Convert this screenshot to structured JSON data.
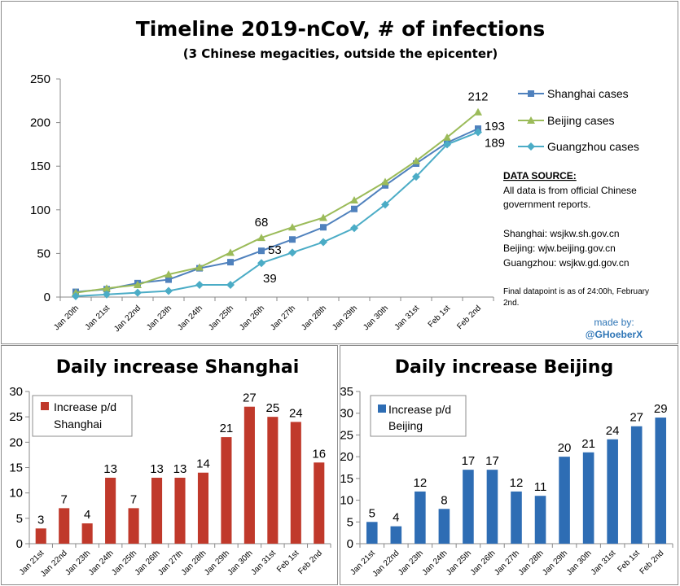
{
  "chart_data": [
    {
      "type": "line",
      "title": "Timeline 2019-nCoV, # of infections",
      "subtitle": "(3 Chinese megacities, outside the epicenter)",
      "categories": [
        "Jan 20th",
        "Jan 21st",
        "Jan 22nd",
        "Jan 23th",
        "Jan 24th",
        "Jan 25th",
        "Jan 26th",
        "Jan 27th",
        "Jan 28th",
        "Jan 29th",
        "Jan 30th",
        "Jan 31st",
        "Feb 1st",
        "Feb 2nd"
      ],
      "yticks": [
        "0",
        "50",
        "100",
        "150",
        "200",
        "250"
      ],
      "ylim": [
        0,
        250
      ],
      "series": [
        {
          "name": "Shanghai cases",
          "color": "#4f81bd",
          "marker": "square",
          "values": [
            6,
            9,
            16,
            20,
            33,
            40,
            53,
            66,
            80,
            101,
            128,
            153,
            177,
            193
          ]
        },
        {
          "name": "Beijing cases",
          "color": "#9bbb59",
          "marker": "triangle",
          "values": [
            5,
            10,
            14,
            26,
            34,
            51,
            68,
            80,
            91,
            111,
            132,
            156,
            183,
            212
          ]
        },
        {
          "name": "Guangzhou cases",
          "color": "#4bacc6",
          "marker": "diamond",
          "values": [
            1,
            3,
            5,
            7,
            14,
            14,
            39,
            51,
            63,
            79,
            106,
            138,
            175,
            189
          ]
        }
      ],
      "annotations": [
        {
          "text": "212",
          "series": 1,
          "index": 13
        },
        {
          "text": "193",
          "series": 0,
          "index": 13
        },
        {
          "text": "189",
          "series": 2,
          "index": 13
        },
        {
          "text": "68",
          "series": 1,
          "index": 6
        },
        {
          "text": "53",
          "series": 0,
          "index": 6
        },
        {
          "text": "39",
          "series": 2,
          "index": 6
        }
      ],
      "source_title": "DATA SOURCE:",
      "source_lines": [
        "All data is from official Chinese",
        "government reports."
      ],
      "source_urls": [
        "Shanghai: wsjkw.sh.gov.cn",
        "Beijing: wjw.beijing.gov.cn",
        "Guangzhou: wsjkw.gd.gov.cn"
      ],
      "final_note": [
        "Final datapoint is as of 24:00h, February",
        "2nd."
      ],
      "credit": [
        "made by:",
        "@GHoeberX"
      ]
    },
    {
      "type": "bar",
      "title": "Daily increase Shanghai",
      "legend": [
        "Increase p/d",
        "Shanghai"
      ],
      "color": "#c0392b",
      "categories": [
        "Jan 21st",
        "Jan 22nd",
        "Jan 23th",
        "Jan 24th",
        "Jan 25th",
        "Jan 26th",
        "Jan 27th",
        "Jan 28th",
        "Jan 29th",
        "Jan 30th",
        "Jan 31st",
        "Feb 1st",
        "Feb 2nd"
      ],
      "values": [
        3,
        7,
        4,
        13,
        7,
        13,
        13,
        14,
        21,
        27,
        25,
        24,
        16
      ],
      "yticks": [
        "0",
        "5",
        "10",
        "15",
        "20",
        "25",
        "30"
      ],
      "ylim": [
        0,
        30
      ]
    },
    {
      "type": "bar",
      "title": "Daily increase Beijing",
      "legend": [
        "Increase p/d",
        "Beijing"
      ],
      "color": "#2e6db4",
      "categories": [
        "Jan 21st",
        "Jan 22nd",
        "Jan 23th",
        "Jan 24th",
        "Jan 25th",
        "Jan 26th",
        "Jan 27th",
        "Jan 28th",
        "Jan 29th",
        "Jan 30th",
        "Jan 31st",
        "Feb 1st",
        "Feb 2nd"
      ],
      "values": [
        5,
        4,
        12,
        8,
        17,
        17,
        12,
        11,
        20,
        21,
        24,
        27,
        29
      ],
      "yticks": [
        "0",
        "5",
        "10",
        "15",
        "20",
        "25",
        "30",
        "35"
      ],
      "ylim": [
        0,
        35
      ]
    }
  ]
}
